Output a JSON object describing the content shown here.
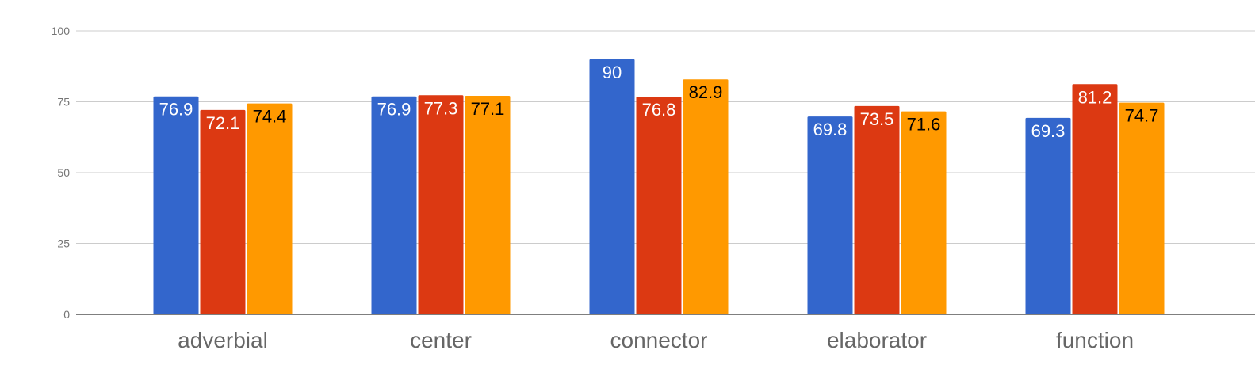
{
  "chart_data": {
    "type": "bar",
    "categories": [
      "adverbial",
      "center",
      "connector",
      "elaborator",
      "function"
    ],
    "series": [
      {
        "color": "#3366cc",
        "label_color": "#ffffff",
        "values": [
          76.9,
          76.9,
          90,
          69.8,
          69.3
        ]
      },
      {
        "color": "#dc3912",
        "label_color": "#ffffff",
        "values": [
          72.1,
          77.3,
          76.8,
          73.5,
          81.2
        ]
      },
      {
        "color": "#ff9900",
        "label_color": "#000000",
        "values": [
          74.4,
          77.1,
          82.9,
          71.6,
          74.7
        ]
      }
    ],
    "data_labels": [
      [
        "76.9",
        "76.9",
        "90",
        "69.8",
        "69.3"
      ],
      [
        "72.1",
        "77.3",
        "76.8",
        "73.5",
        "81.2"
      ],
      [
        "74.4",
        "77.1",
        "82.9",
        "71.6",
        "74.7"
      ]
    ],
    "y_ticks": [
      "0",
      "25",
      "50",
      "75",
      "100"
    ],
    "ylim": [
      0,
      100
    ],
    "grid": true,
    "legend": "none",
    "title": "",
    "xlabel": "",
    "ylabel": ""
  }
}
